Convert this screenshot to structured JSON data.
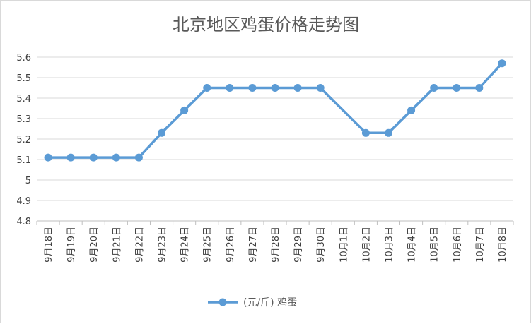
{
  "chart_data": {
    "type": "line",
    "title": "北京地区鸡蛋价格走势图",
    "xlabel": "",
    "ylabel": "",
    "categories": [
      "9月18日",
      "9月19日",
      "9月20日",
      "9月21日",
      "9月22日",
      "9月23日",
      "9月24日",
      "9月25日",
      "9月26日",
      "9月27日",
      "9月28日",
      "9月29日",
      "9月30日",
      "10月1日",
      "10月2日",
      "10月3日",
      "10月4日",
      "10月5日",
      "10月6日",
      "10月7日",
      "10月8日"
    ],
    "series": [
      {
        "name": "(元/斤) 鸡蛋",
        "color": "#5b9bd5",
        "values": [
          5.11,
          5.11,
          5.11,
          5.11,
          5.11,
          5.23,
          5.34,
          5.45,
          5.45,
          5.45,
          5.45,
          5.45,
          5.45,
          null,
          5.23,
          5.23,
          5.34,
          5.45,
          5.45,
          5.45,
          5.57
        ]
      }
    ],
    "ylim": [
      4.8,
      5.6
    ],
    "yticks": [
      "4.8",
      "4.9",
      "5",
      "5.1",
      "5.2",
      "5.3",
      "5.4",
      "5.5",
      "5.6"
    ],
    "grid": true,
    "legend": "bottom-center"
  }
}
